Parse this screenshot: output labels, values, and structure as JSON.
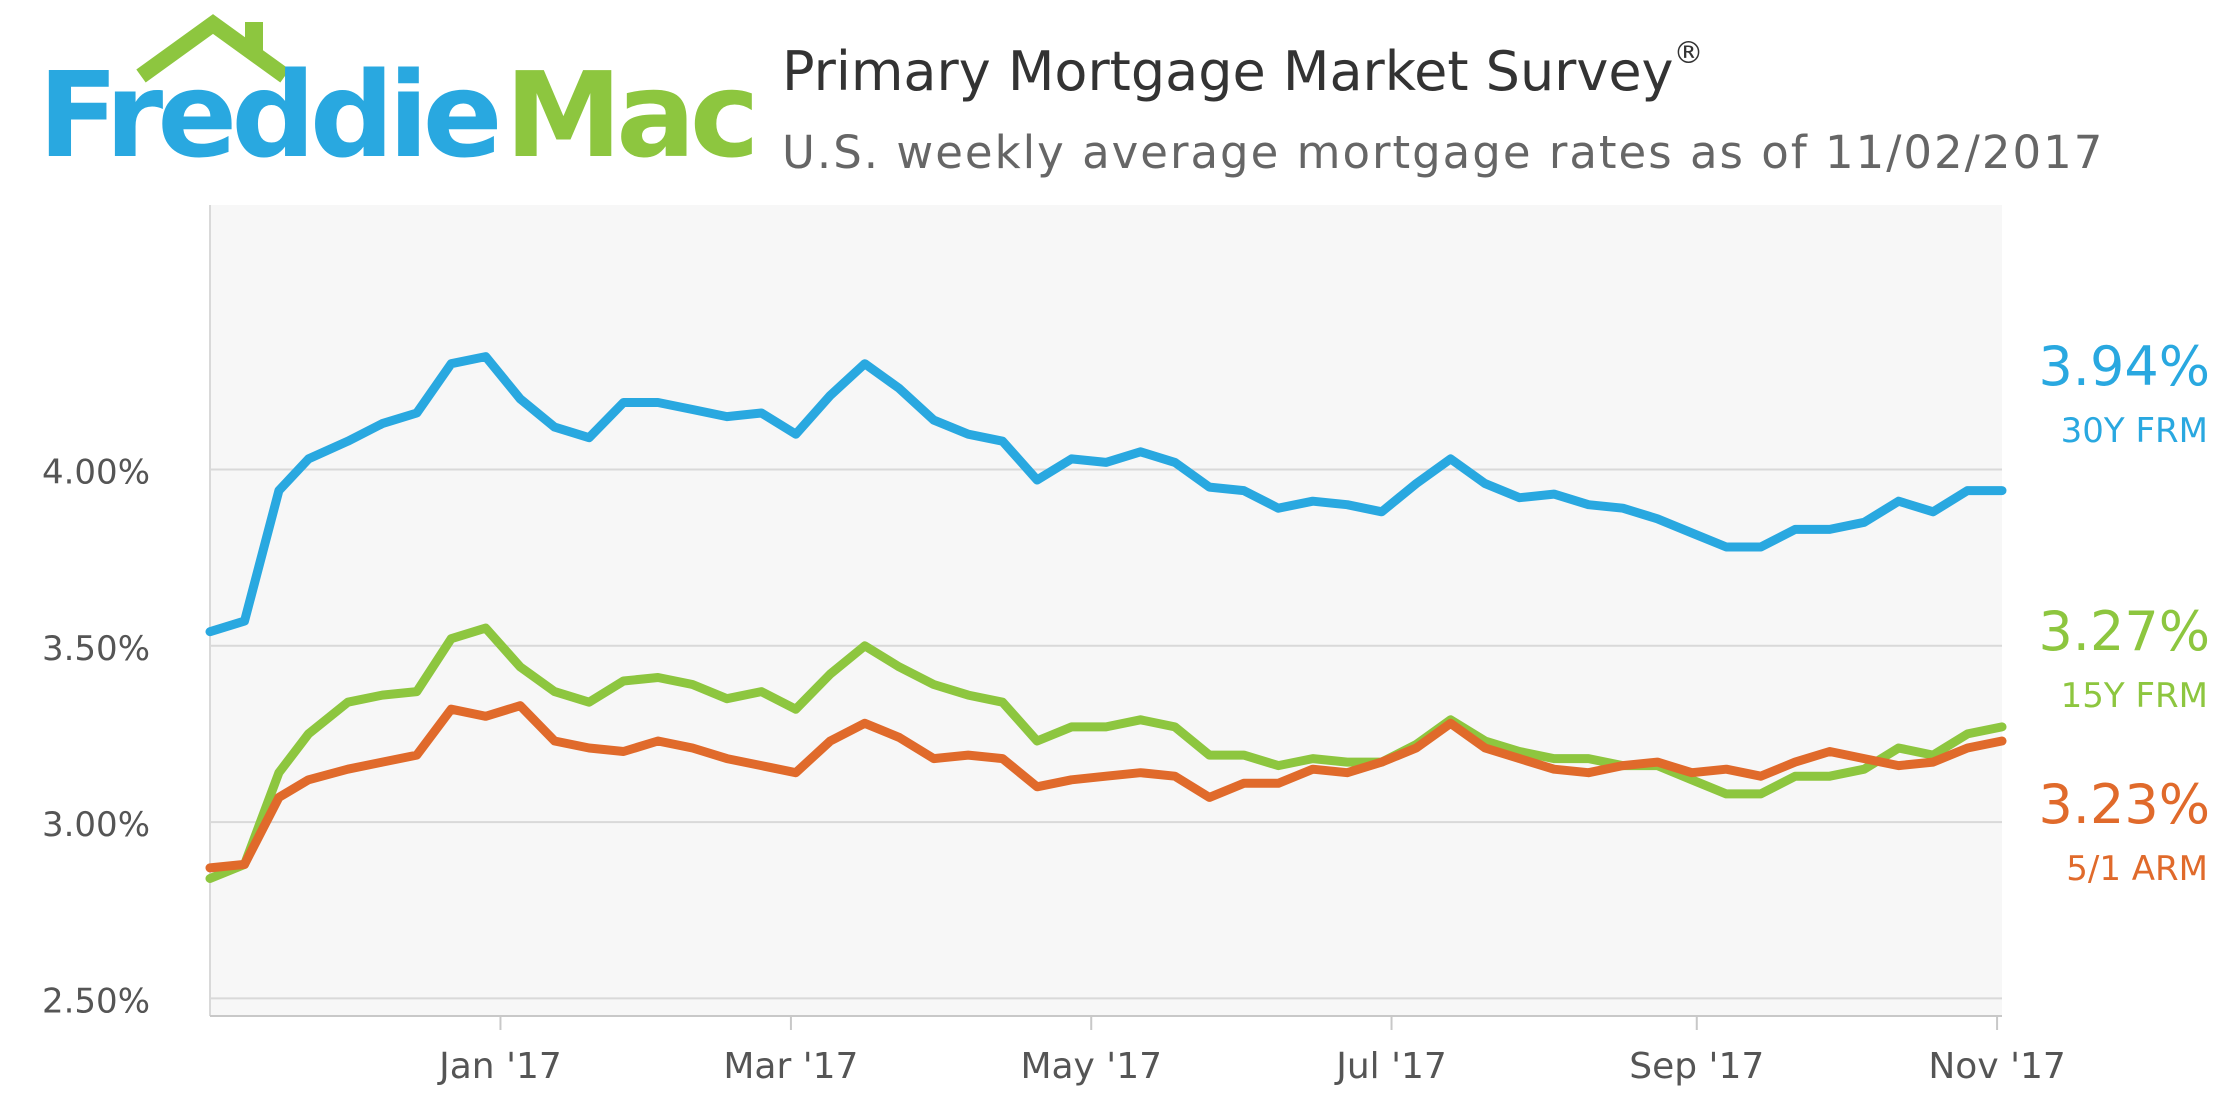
{
  "logo": {
    "part1": "Freddie",
    "part2": "Mac"
  },
  "header": {
    "title": "Primary Mortgage Market Survey",
    "title_mark": "®",
    "subtitle": "U.S. weekly average mortgage rates as of 11/02/2017"
  },
  "colors": {
    "frm30": "#29a8e0",
    "frm15": "#8dc63f",
    "arm51": "#e06a2b",
    "plot_bg": "#f7f7f7",
    "grid": "#d9d9d9",
    "axis_text": "#555555"
  },
  "chart_data": {
    "type": "line",
    "title": "Primary Mortgage Market Survey",
    "subtitle": "U.S. weekly average mortgage rates as of 11/02/2017",
    "xlabel": "",
    "ylabel": "",
    "ylim": [
      2.45,
      4.75
    ],
    "xlim": [
      "2016-11-03",
      "2017-11-02"
    ],
    "grid": true,
    "legend": "right, end-of-line labels",
    "y_ticks": [
      {
        "value": 2.5,
        "label": "2.50%"
      },
      {
        "value": 3.0,
        "label": "3.00%"
      },
      {
        "value": 3.5,
        "label": "3.50%"
      },
      {
        "value": 4.0,
        "label": "4.00%"
      }
    ],
    "x_ticks": [
      {
        "date": "2017-01-01",
        "label": "Jan '17"
      },
      {
        "date": "2017-03-01",
        "label": "Mar '17"
      },
      {
        "date": "2017-05-01",
        "label": "May '17"
      },
      {
        "date": "2017-07-01",
        "label": "Jul '17"
      },
      {
        "date": "2017-09-01",
        "label": "Sep '17"
      },
      {
        "date": "2017-11-01",
        "label": "Nov '17"
      }
    ],
    "x": [
      "2016-11-03",
      "2016-11-10",
      "2016-11-17",
      "2016-11-23",
      "2016-12-01",
      "2016-12-08",
      "2016-12-15",
      "2016-12-22",
      "2016-12-29",
      "2017-01-05",
      "2017-01-12",
      "2017-01-19",
      "2017-01-26",
      "2017-02-02",
      "2017-02-09",
      "2017-02-16",
      "2017-02-23",
      "2017-03-02",
      "2017-03-09",
      "2017-03-16",
      "2017-03-23",
      "2017-03-30",
      "2017-04-06",
      "2017-04-13",
      "2017-04-20",
      "2017-04-27",
      "2017-05-04",
      "2017-05-11",
      "2017-05-18",
      "2017-05-25",
      "2017-06-01",
      "2017-06-08",
      "2017-06-15",
      "2017-06-22",
      "2017-06-29",
      "2017-07-06",
      "2017-07-13",
      "2017-07-20",
      "2017-07-27",
      "2017-08-03",
      "2017-08-10",
      "2017-08-17",
      "2017-08-24",
      "2017-08-31",
      "2017-09-07",
      "2017-09-14",
      "2017-09-21",
      "2017-09-28",
      "2017-10-05",
      "2017-10-12",
      "2017-10-19",
      "2017-10-26",
      "2017-11-02"
    ],
    "series": [
      {
        "name": "30Y FRM",
        "end_value_label": "3.94%",
        "color": "#29a8e0",
        "values": [
          3.54,
          3.57,
          3.94,
          4.03,
          4.08,
          4.13,
          4.16,
          4.3,
          4.32,
          4.2,
          4.12,
          4.09,
          4.19,
          4.19,
          4.17,
          4.15,
          4.16,
          4.1,
          4.21,
          4.3,
          4.23,
          4.14,
          4.1,
          4.08,
          3.97,
          4.03,
          4.02,
          4.05,
          4.02,
          3.95,
          3.94,
          3.89,
          3.91,
          3.9,
          3.88,
          3.96,
          4.03,
          3.96,
          3.92,
          3.93,
          3.9,
          3.89,
          3.86,
          3.82,
          3.78,
          3.78,
          3.83,
          3.83,
          3.85,
          3.91,
          3.88,
          3.94,
          3.94
        ]
      },
      {
        "name": "15Y FRM",
        "end_value_label": "3.27%",
        "color": "#8dc63f",
        "values": [
          2.84,
          2.88,
          3.14,
          3.25,
          3.34,
          3.36,
          3.37,
          3.52,
          3.55,
          3.44,
          3.37,
          3.34,
          3.4,
          3.41,
          3.39,
          3.35,
          3.37,
          3.32,
          3.42,
          3.5,
          3.44,
          3.39,
          3.36,
          3.34,
          3.23,
          3.27,
          3.27,
          3.29,
          3.27,
          3.19,
          3.19,
          3.16,
          3.18,
          3.17,
          3.17,
          3.22,
          3.29,
          3.23,
          3.2,
          3.18,
          3.18,
          3.16,
          3.16,
          3.12,
          3.08,
          3.08,
          3.13,
          3.13,
          3.15,
          3.21,
          3.19,
          3.25,
          3.27
        ]
      },
      {
        "name": "5/1 ARM",
        "end_value_label": "3.23%",
        "color": "#e06a2b",
        "values": [
          2.87,
          2.88,
          3.07,
          3.12,
          3.15,
          3.17,
          3.19,
          3.32,
          3.3,
          3.33,
          3.23,
          3.21,
          3.2,
          3.23,
          3.21,
          3.18,
          3.16,
          3.14,
          3.23,
          3.28,
          3.24,
          3.18,
          3.19,
          3.18,
          3.1,
          3.12,
          3.13,
          3.14,
          3.13,
          3.07,
          3.11,
          3.11,
          3.15,
          3.14,
          3.17,
          3.21,
          3.28,
          3.21,
          3.18,
          3.15,
          3.14,
          3.16,
          3.17,
          3.14,
          3.15,
          3.13,
          3.17,
          3.2,
          3.18,
          3.16,
          3.17,
          3.21,
          3.23
        ]
      }
    ]
  }
}
